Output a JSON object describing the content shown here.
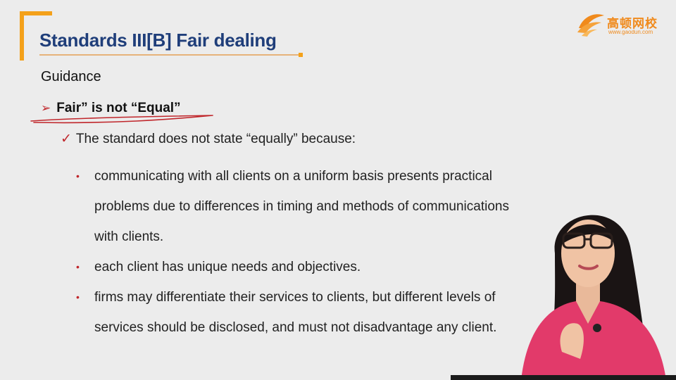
{
  "slide": {
    "title": "Standards III[B] Fair dealing",
    "section_heading": "Guidance",
    "point": "Fair” is not “Equal”",
    "subpoint": "The standard does not state “equally” because:",
    "bullets": [
      "communicating with all clients on a uniform basis presents practical problems due to differences in timing and methods of communications with clients.",
      "each client has unique needs and objectives.",
      "firms may differentiate their services to clients, but different levels of services should be disclosed, and must not disadvantage any client."
    ]
  },
  "logo": {
    "name": "高顿网校",
    "url": "www.gaodun.com",
    "color": "#f08a1c"
  },
  "colors": {
    "title": "#1f3e7a",
    "accent_orange": "#f4a11a",
    "bullet_red": "#c0262b",
    "presenter_shirt": "#e23a6a"
  },
  "icons": {
    "point_marker": "arrowhead-icon",
    "subpoint_marker": "checkmark-icon",
    "bullet_marker": "bullet-dot-icon"
  }
}
